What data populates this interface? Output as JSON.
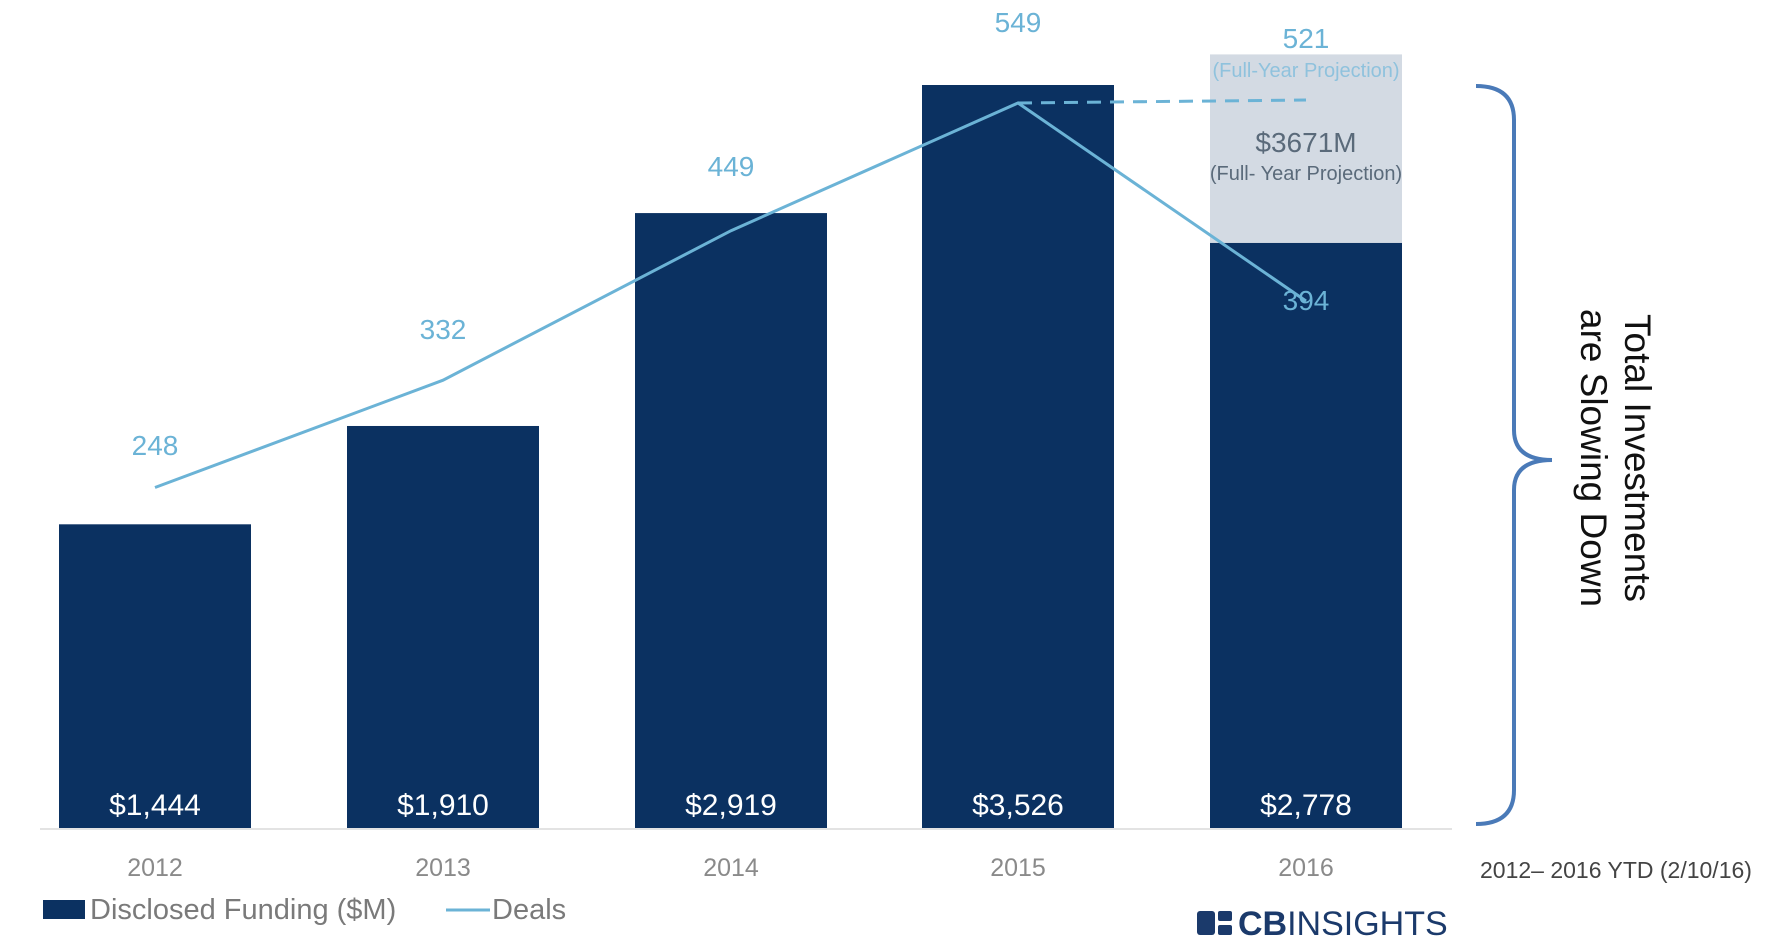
{
  "chart_data": {
    "type": "bar",
    "categories": [
      "2012",
      "2013",
      "2014",
      "2015",
      "2016"
    ],
    "series": [
      {
        "name": "Disclosed Funding ($M)",
        "type": "bar",
        "values": [
          1444,
          1910,
          2919,
          3526,
          2778
        ],
        "labels": [
          "$1,444",
          "$1,910",
          "$2,919",
          "$3,526",
          "$2,778"
        ]
      },
      {
        "name": "Deals",
        "type": "line",
        "values": [
          248,
          332,
          449,
          549,
          394
        ],
        "labels": [
          "248",
          "332",
          "449",
          "549",
          "394"
        ]
      }
    ],
    "projection": {
      "category": "2016",
      "funding_value": 3671,
      "funding_label": "$3671M",
      "funding_note": "(Full- Year Projection)",
      "deals_value": 521,
      "deals_label": "521",
      "deals_note": "(Full-Year Projection)"
    },
    "title": "",
    "xlabel": "",
    "ylabel": "",
    "legend_position": "bottom-left",
    "grid": false,
    "annotation": {
      "line1": "Total Investments",
      "line2": "are Slowing Down"
    },
    "date_note": "2012– 2016 YTD (2/10/16)",
    "colors": {
      "bar": "#0b3161",
      "projection_fill": "#d3dae3",
      "line": "#6bb3d6",
      "brace": "#4a7ab8"
    }
  },
  "logo": {
    "bold": "CB",
    "light": "INSIGHTS"
  }
}
